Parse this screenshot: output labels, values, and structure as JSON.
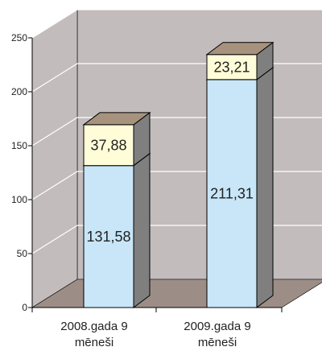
{
  "chart_data": {
    "type": "bar",
    "stacked": true,
    "categories": [
      [
        "2008.gada 9",
        "mēneši"
      ],
      [
        "2009.gada 9",
        "mēneši"
      ]
    ],
    "series": [
      {
        "values": [
          131.58,
          211.31
        ],
        "labels": [
          "131,58",
          "211,31"
        ],
        "color": "#c8e6f8"
      },
      {
        "values": [
          37.88,
          23.21
        ],
        "labels": [
          "37,88",
          "23,21"
        ],
        "color": "#fffdd8"
      }
    ],
    "ylim": [
      0,
      250
    ],
    "yticks": [
      "0",
      "50",
      "100",
      "150",
      "200",
      "250"
    ],
    "grid": true,
    "legend": "none",
    "title": "",
    "xlabel": "",
    "ylabel": ""
  },
  "colors": {
    "wall": "#c2bcbc",
    "floor": "#9c8e86",
    "grid": "#ffffff",
    "bar_side": "#7f7f7f",
    "top_lower": "#9fb6c7",
    "top_upper": "#a7937d",
    "edge": "#000000"
  }
}
